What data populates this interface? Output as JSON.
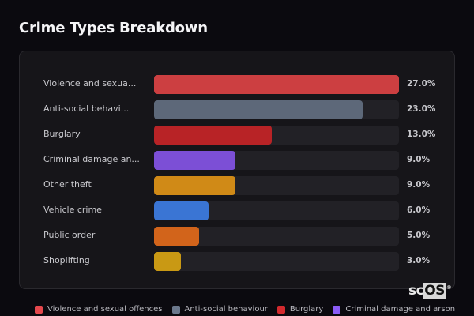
{
  "header": {
    "title": "Crime Types Breakdown"
  },
  "chart_data": {
    "type": "bar",
    "orientation": "horizontal",
    "title": "Crime Types Breakdown",
    "max_value": 27.0,
    "categories": [
      "Violence and sexual offences",
      "Anti-social behaviour",
      "Burglary",
      "Criminal damage and arson",
      "Other theft",
      "Vehicle crime",
      "Public order",
      "Shoplifting"
    ],
    "values": [
      27.0,
      23.0,
      13.0,
      9.0,
      9.0,
      6.0,
      5.0,
      3.0
    ],
    "unit": "%",
    "legend_position": "bottom"
  },
  "rows": [
    {
      "label": "Violence and sexua...",
      "full_label": "Violence and sexual offences",
      "value": 27.0,
      "pct": "27.0%",
      "color": "#cc3f41"
    },
    {
      "label": "Anti-social behavi...",
      "full_label": "Anti-social behaviour",
      "value": 23.0,
      "pct": "23.0%",
      "color": "#5d6879"
    },
    {
      "label": "Burglary",
      "full_label": "Burglary",
      "value": 13.0,
      "pct": "13.0%",
      "color": "#b82326"
    },
    {
      "label": "Criminal damage an...",
      "full_label": "Criminal damage and arson",
      "value": 9.0,
      "pct": "9.0%",
      "color": "#7c4fd6"
    },
    {
      "label": "Other theft",
      "full_label": "Other theft",
      "value": 9.0,
      "pct": "9.0%",
      "color": "#d08a17"
    },
    {
      "label": "Vehicle crime",
      "full_label": "Vehicle crime",
      "value": 6.0,
      "pct": "6.0%",
      "color": "#3a75d4"
    },
    {
      "label": "Public order",
      "full_label": "Public order",
      "value": 5.0,
      "pct": "5.0%",
      "color": "#d2641b"
    },
    {
      "label": "Shoplifting",
      "full_label": "Shoplifting",
      "value": 3.0,
      "pct": "3.0%",
      "color": "#c99914"
    }
  ],
  "legend": [
    {
      "label": "Violence and sexual offences",
      "color": "#e5484d"
    },
    {
      "label": "Anti-social behaviour",
      "color": "#6b788c"
    },
    {
      "label": "Burglary",
      "color": "#d32a2e"
    },
    {
      "label": "Criminal damage and arson",
      "color": "#8b5cf6"
    }
  ],
  "logo": {
    "text_sc": "sc",
    "text_os": "OS",
    "reg": "®"
  }
}
